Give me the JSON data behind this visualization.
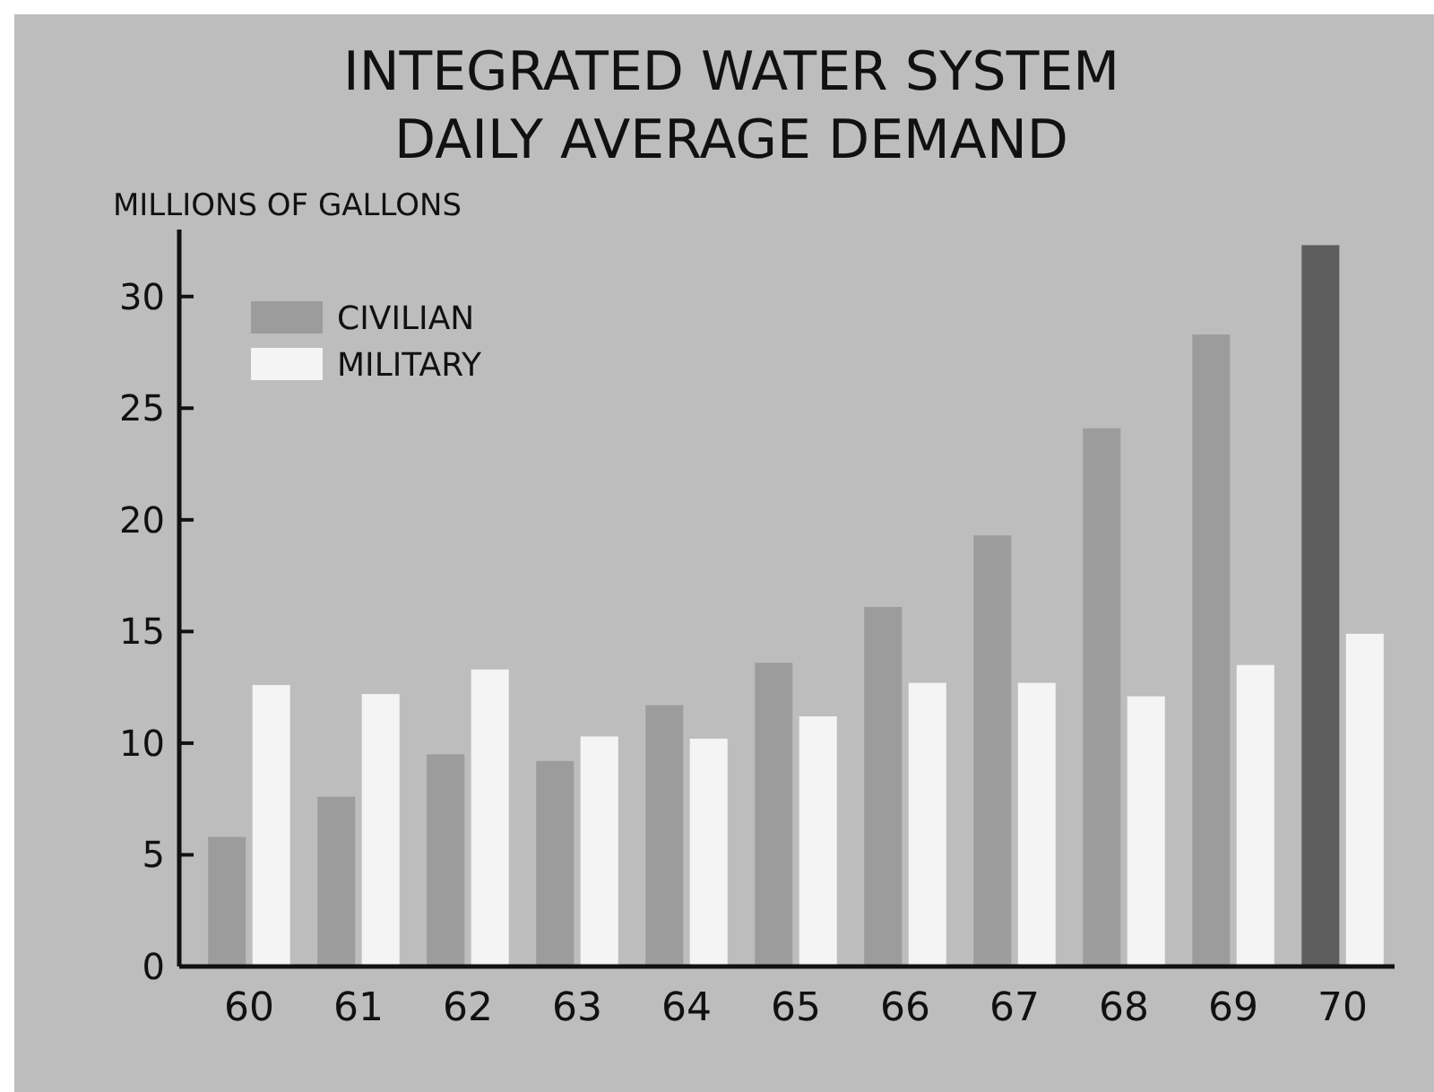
{
  "chart_data": {
    "type": "bar",
    "title": "INTEGRATED WATER SYSTEM",
    "subtitle": "DAILY AVERAGE DEMAND",
    "ylabel": "MILLIONS OF GALLONS",
    "categories": [
      "60",
      "61",
      "62",
      "63",
      "64",
      "65",
      "66",
      "67",
      "68",
      "69",
      "70"
    ],
    "series": [
      {
        "name": "CIVILIAN",
        "color": "#9c9c9c",
        "colors": [
          "#9c9c9c",
          "#9c9c9c",
          "#9c9c9c",
          "#9c9c9c",
          "#9c9c9c",
          "#9c9c9c",
          "#9c9c9c",
          "#9c9c9c",
          "#9c9c9c",
          "#9c9c9c",
          "#5e5e5e"
        ],
        "values": [
          5.8,
          7.6,
          9.5,
          9.2,
          11.7,
          13.6,
          16.1,
          19.3,
          24.1,
          28.3,
          32.3
        ]
      },
      {
        "name": "MILITARY",
        "color": "#f4f4f4",
        "values": [
          12.6,
          12.2,
          13.3,
          10.3,
          10.2,
          11.2,
          12.7,
          12.7,
          12.1,
          13.5,
          14.9
        ]
      }
    ],
    "ylim": [
      0,
      33
    ],
    "yticks": [
      0,
      5,
      10,
      15,
      20,
      25,
      30
    ],
    "grid": false,
    "legend": "top left"
  }
}
